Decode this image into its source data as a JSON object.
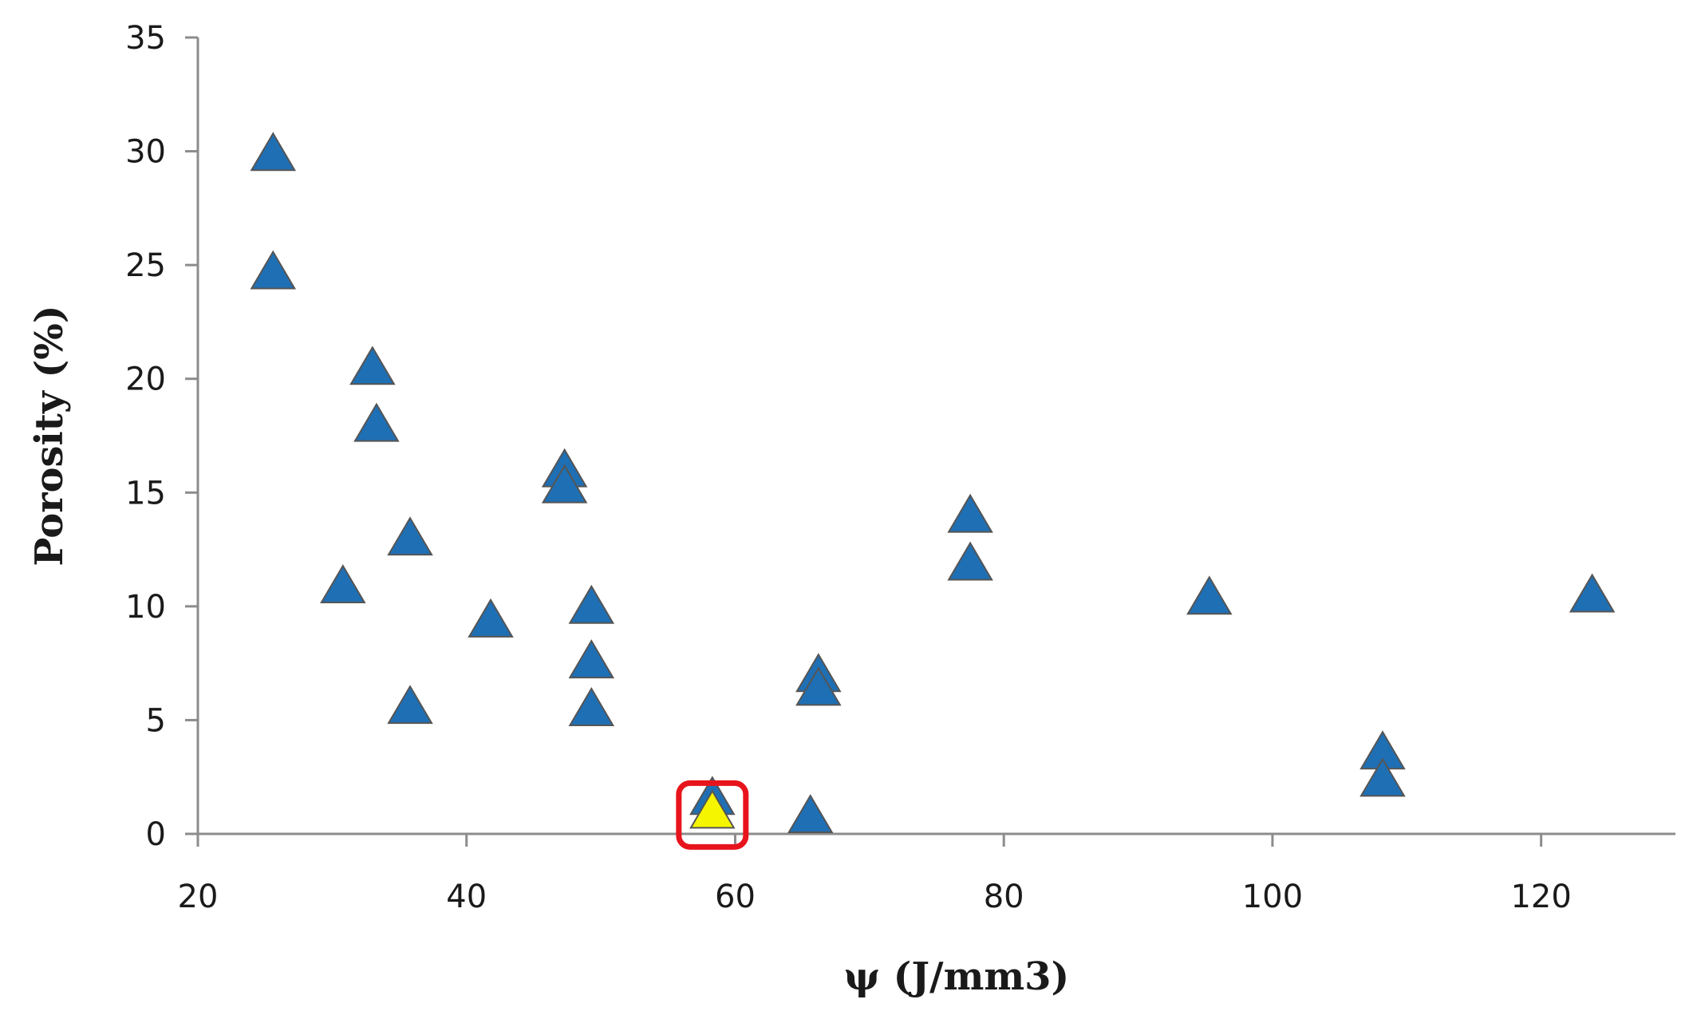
{
  "chart_data": {
    "type": "scatter",
    "xlabel": "ψ (J/mm3)",
    "ylabel": "Porosity (%)",
    "xlim": [
      20,
      130
    ],
    "ylim": [
      0,
      35
    ],
    "x_ticks": [
      20,
      40,
      60,
      80,
      100,
      120
    ],
    "y_ticks": [
      0,
      5,
      10,
      15,
      20,
      25,
      30,
      35
    ],
    "grid": false,
    "legend": "none",
    "marker": "triangle",
    "colors": {
      "point": "#1f6fb4",
      "highlight_point": "#f5f500",
      "highlight_box": "#e8141c",
      "axis": "#8c8c8c"
    },
    "series": [
      {
        "points": [
          {
            "x": 25.6,
            "y": 29.8
          },
          {
            "x": 25.6,
            "y": 24.6
          },
          {
            "x": 33.0,
            "y": 20.4
          },
          {
            "x": 33.3,
            "y": 17.9
          },
          {
            "x": 30.8,
            "y": 10.8
          },
          {
            "x": 35.8,
            "y": 12.9
          },
          {
            "x": 35.8,
            "y": 5.5
          },
          {
            "x": 41.8,
            "y": 9.3
          },
          {
            "x": 47.3,
            "y": 15.9
          },
          {
            "x": 47.3,
            "y": 15.2
          },
          {
            "x": 49.3,
            "y": 9.9
          },
          {
            "x": 49.3,
            "y": 7.5
          },
          {
            "x": 49.3,
            "y": 5.4
          },
          {
            "x": 58.3,
            "y": 1.5
          },
          {
            "x": 65.6,
            "y": 0.7
          },
          {
            "x": 66.2,
            "y": 6.9
          },
          {
            "x": 66.2,
            "y": 6.3
          },
          {
            "x": 77.5,
            "y": 13.9
          },
          {
            "x": 77.5,
            "y": 11.8
          },
          {
            "x": 95.3,
            "y": 10.3
          },
          {
            "x": 108.2,
            "y": 3.5
          },
          {
            "x": 108.2,
            "y": 2.3
          },
          {
            "x": 123.8,
            "y": 10.4
          }
        ]
      }
    ],
    "highlighted_point": {
      "x": 58.3,
      "y": 0.9
    }
  }
}
